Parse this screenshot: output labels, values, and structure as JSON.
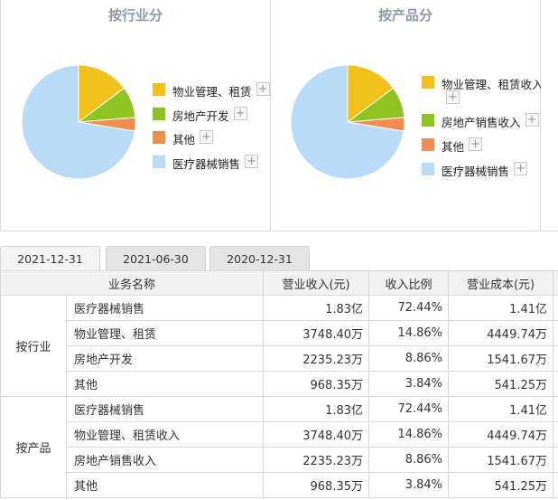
{
  "panels": [
    {
      "title": "按行业分",
      "legend": [
        {
          "label": "物业管理、租赁",
          "color": "#f3c11b"
        },
        {
          "label": "房地产开发",
          "color": "#8fc31f"
        },
        {
          "label": "其他",
          "color": "#f28c4f"
        },
        {
          "label": "医疗器械销售",
          "color": "#b8dcf7"
        }
      ]
    },
    {
      "title": "按产品分",
      "legend": [
        {
          "label": "物业管理、租赁收入",
          "color": "#f3c11b"
        },
        {
          "label": "房地产销售收入",
          "color": "#8fc31f"
        },
        {
          "label": "其他",
          "color": "#f28c4f"
        },
        {
          "label": "医疗器械销售",
          "color": "#b8dcf7"
        }
      ]
    }
  ],
  "chart_data": [
    {
      "type": "pie",
      "title": "按行业分",
      "categories": [
        "物业管理、租赁",
        "房地产开发",
        "其他",
        "医疗器械销售"
      ],
      "values": [
        14.86,
        8.86,
        3.84,
        72.44
      ],
      "colors": [
        "#f3c11b",
        "#8fc31f",
        "#f28c4f",
        "#b8dcf7"
      ]
    },
    {
      "type": "pie",
      "title": "按产品分",
      "categories": [
        "物业管理、租赁收入",
        "房地产销售收入",
        "其他",
        "医疗器械销售"
      ],
      "values": [
        14.86,
        8.86,
        3.84,
        72.44
      ],
      "colors": [
        "#f3c11b",
        "#8fc31f",
        "#f28c4f",
        "#b8dcf7"
      ]
    }
  ],
  "plus_symbol": "+",
  "tabs": [
    "2021-12-31",
    "2021-06-30",
    "2020-12-31"
  ],
  "table": {
    "headers": [
      "业务名称",
      "营业收入(元)",
      "收入比例",
      "营业成本(元)"
    ],
    "groups": [
      {
        "name": "按行业",
        "rows": [
          {
            "name": "医疗器械销售",
            "revenue": "1.83亿",
            "ratio": "72.44%",
            "cost": "1.41亿"
          },
          {
            "name": "物业管理、租赁",
            "revenue": "3748.40万",
            "ratio": "14.86%",
            "cost": "4449.74万"
          },
          {
            "name": "房地产开发",
            "revenue": "2235.23万",
            "ratio": "8.86%",
            "cost": "1541.67万"
          },
          {
            "name": "其他",
            "revenue": "968.35万",
            "ratio": "3.84%",
            "cost": "541.25万"
          }
        ]
      },
      {
        "name": "按产品",
        "rows": [
          {
            "name": "医疗器械销售",
            "revenue": "1.83亿",
            "ratio": "72.44%",
            "cost": "1.41亿"
          },
          {
            "name": "物业管理、租赁收入",
            "revenue": "3748.40万",
            "ratio": "14.86%",
            "cost": "4449.74万"
          },
          {
            "name": "房地产销售收入",
            "revenue": "2235.23万",
            "ratio": "8.86%",
            "cost": "1541.67万"
          },
          {
            "name": "其他",
            "revenue": "968.35万",
            "ratio": "3.84%",
            "cost": "541.25万"
          }
        ]
      }
    ]
  }
}
